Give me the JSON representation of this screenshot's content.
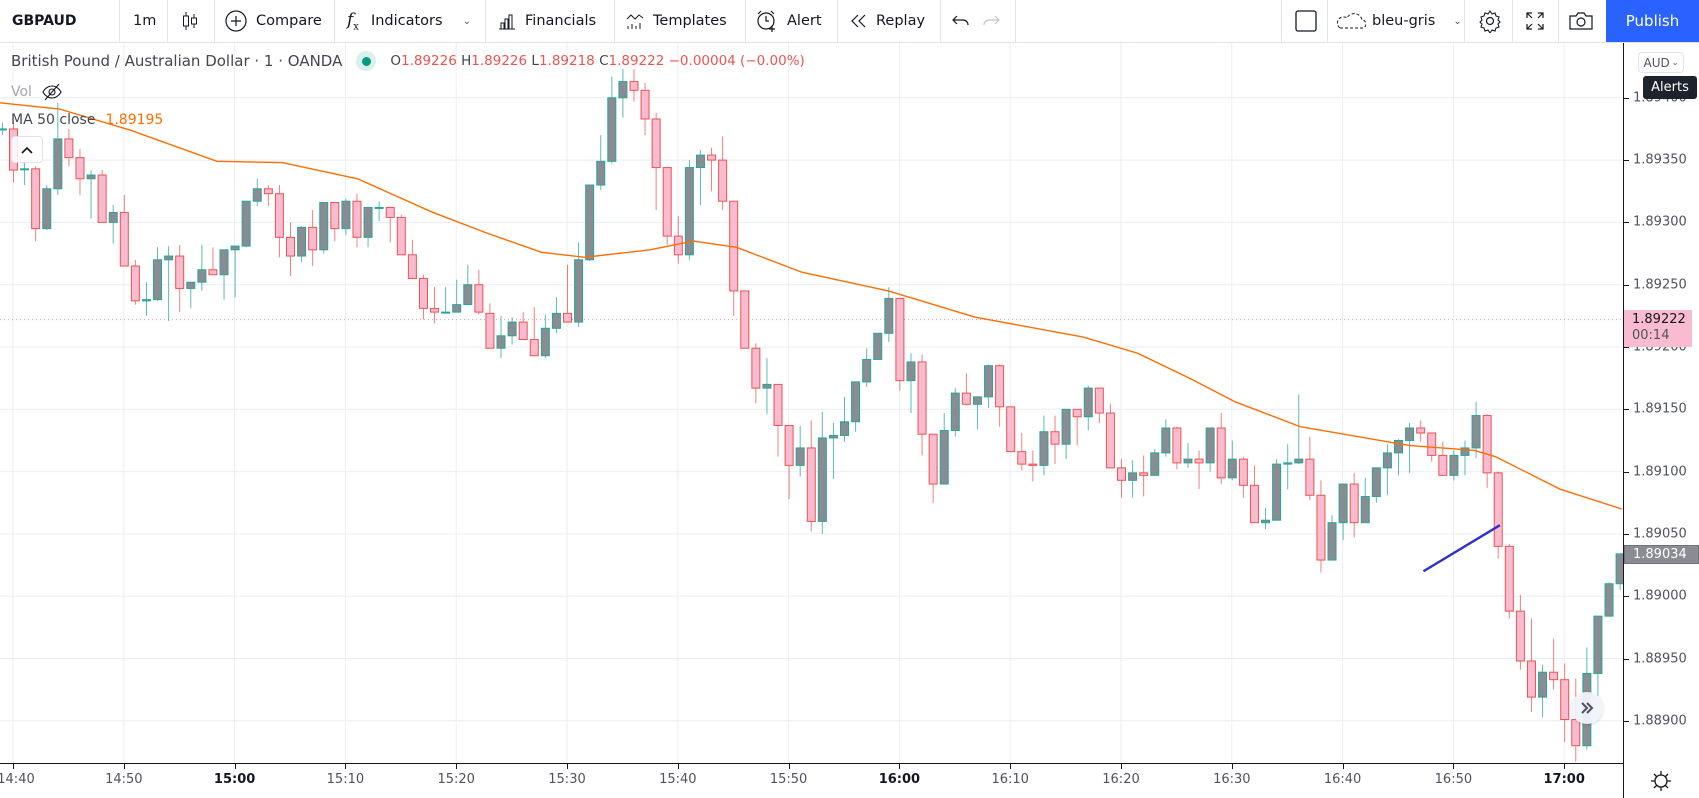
{
  "toolbar": {
    "symbol": "GBPAUD",
    "interval": "1m",
    "compare": "Compare",
    "indicators": "Indicators",
    "financials": "Financials",
    "templates": "Templates",
    "alert": "Alert",
    "replay": "Replay",
    "layout_name": "bleu-gris",
    "publish": "Publish"
  },
  "legend": {
    "title": "British Pound / Australian Dollar · 1 · OANDA",
    "open_k": "O",
    "open": "1.89226",
    "high_k": "H",
    "high": "1.89226",
    "low_k": "L",
    "low": "1.89218",
    "close_k": "C",
    "close": "1.89222",
    "change": "−0.00004 (−0.00%)",
    "vol": "Vol",
    "ma_label": "MA 50 close",
    "ma_value": "1.89195"
  },
  "price_axis": {
    "currency": "AUD",
    "tooltip": "Alerts",
    "last_price": "1.89222",
    "countdown": "00:14",
    "current_price": "1.89034",
    "labels": [
      "1.89400",
      "1.89350",
      "1.89300",
      "1.89250",
      "1.89200",
      "1.89150",
      "1.89100",
      "1.89050",
      "1.89000",
      "1.88950",
      "1.88900"
    ]
  },
  "time_axis": {
    "labels": [
      "14:40",
      "14:50",
      "15:00",
      "15:10",
      "15:20",
      "15:30",
      "15:40",
      "15:50",
      "16:00",
      "16:10",
      "16:20",
      "16:30",
      "16:40",
      "16:50",
      "17:00"
    ],
    "bold": [
      "15:00",
      "16:00",
      "17:00"
    ]
  },
  "colors": {
    "up_fill": "#8a8c93",
    "up_border": "#26a69a",
    "down_fill": "#f8bbd0",
    "down_border": "#ef5350",
    "ma": "#ff6d00",
    "trendline": "#3030c8",
    "accent": "#2962ff"
  },
  "chart_data": {
    "type": "candlestick",
    "symbol": "GBPAUD",
    "interval_minutes": 1,
    "first_bar_time": "14:39",
    "ylim": [
      1.8885,
      1.8944
    ],
    "ohlc": [
      [
        1.89375,
        1.8938,
        1.8937,
        1.89375
      ],
      [
        1.89375,
        1.8938,
        1.89332,
        1.89342
      ],
      [
        1.89343,
        1.8935,
        1.8933,
        1.89343
      ],
      [
        1.89343,
        1.89345,
        1.89285,
        1.89295
      ],
      [
        1.89295,
        1.8933,
        1.89294,
        1.89327
      ],
      [
        1.89327,
        1.89396,
        1.89322,
        1.89367
      ],
      [
        1.89367,
        1.89375,
        1.89345,
        1.89352
      ],
      [
        1.89352,
        1.89359,
        1.89322,
        1.89335
      ],
      [
        1.89335,
        1.89342,
        1.89303,
        1.89338
      ],
      [
        1.89338,
        1.89342,
        1.893,
        1.893
      ],
      [
        1.893,
        1.89314,
        1.89283,
        1.89308
      ],
      [
        1.89308,
        1.89322,
        1.89265,
        1.89265
      ],
      [
        1.89265,
        1.8927,
        1.89234,
        1.89237
      ],
      [
        1.89237,
        1.89252,
        1.89225,
        1.89238
      ],
      [
        1.89238,
        1.8928,
        1.89237,
        1.8927
      ],
      [
        1.8927,
        1.89281,
        1.89221,
        1.89273
      ],
      [
        1.89273,
        1.89282,
        1.89228,
        1.89247
      ],
      [
        1.89247,
        1.89252,
        1.89231,
        1.89252
      ],
      [
        1.89252,
        1.89282,
        1.89245,
        1.89262
      ],
      [
        1.89262,
        1.8928,
        1.89258,
        1.89258
      ],
      [
        1.89258,
        1.89278,
        1.89238,
        1.89278
      ],
      [
        1.89278,
        1.89281,
        1.8924,
        1.89281
      ],
      [
        1.89281,
        1.89317,
        1.8928,
        1.89317
      ],
      [
        1.89317,
        1.89335,
        1.89313,
        1.89327
      ],
      [
        1.89327,
        1.8933,
        1.89313,
        1.89323
      ],
      [
        1.89323,
        1.8933,
        1.89272,
        1.89288
      ],
      [
        1.89288,
        1.893,
        1.89257,
        1.89273
      ],
      [
        1.89273,
        1.89297,
        1.89268,
        1.89296
      ],
      [
        1.89296,
        1.8931,
        1.89265,
        1.89278
      ],
      [
        1.89278,
        1.89316,
        1.89275,
        1.89316
      ],
      [
        1.89316,
        1.89316,
        1.89285,
        1.89295
      ],
      [
        1.89295,
        1.89319,
        1.8929,
        1.89317
      ],
      [
        1.89317,
        1.89323,
        1.8928,
        1.89288
      ],
      [
        1.89288,
        1.89312,
        1.8928,
        1.89312
      ],
      [
        1.89312,
        1.89317,
        1.89301,
        1.89312
      ],
      [
        1.89312,
        1.89312,
        1.89284,
        1.89304
      ],
      [
        1.89304,
        1.89306,
        1.89274,
        1.89274
      ],
      [
        1.89274,
        1.89286,
        1.89255,
        1.89255
      ],
      [
        1.89255,
        1.89258,
        1.89222,
        1.89231
      ],
      [
        1.89231,
        1.89248,
        1.89219,
        1.89228
      ],
      [
        1.89228,
        1.89248,
        1.89228,
        1.89228
      ],
      [
        1.89228,
        1.89254,
        1.89228,
        1.89234
      ],
      [
        1.89234,
        1.89266,
        1.89234,
        1.8925
      ],
      [
        1.8925,
        1.89262,
        1.89226,
        1.89228
      ],
      [
        1.89227,
        1.89235,
        1.89199,
        1.89199
      ],
      [
        1.89199,
        1.89225,
        1.89191,
        1.89209
      ],
      [
        1.89209,
        1.89224,
        1.89202,
        1.8922
      ],
      [
        1.8922,
        1.89228,
        1.89206,
        1.89206
      ],
      [
        1.89206,
        1.89232,
        1.89193,
        1.89193
      ],
      [
        1.89193,
        1.89226,
        1.89191,
        1.89215
      ],
      [
        1.89215,
        1.8924,
        1.89211,
        1.89227
      ],
      [
        1.89227,
        1.89266,
        1.8922,
        1.8922
      ],
      [
        1.8922,
        1.89284,
        1.89216,
        1.8927
      ],
      [
        1.8927,
        1.8933,
        1.89269,
        1.8933
      ],
      [
        1.8933,
        1.8937,
        1.89326,
        1.89349
      ],
      [
        1.89349,
        1.89417,
        1.89347,
        1.894
      ],
      [
        1.894,
        1.89423,
        1.89384,
        1.89413
      ],
      [
        1.89413,
        1.89423,
        1.89397,
        1.89406
      ],
      [
        1.89406,
        1.89412,
        1.8937,
        1.89383
      ],
      [
        1.89383,
        1.89388,
        1.8931,
        1.89344
      ],
      [
        1.89344,
        1.89344,
        1.89282,
        1.89289
      ],
      [
        1.89289,
        1.89305,
        1.89267,
        1.89274
      ],
      [
        1.89274,
        1.8935,
        1.8927,
        1.89344
      ],
      [
        1.89344,
        1.89358,
        1.89314,
        1.89354
      ],
      [
        1.89354,
        1.8936,
        1.89325,
        1.8935
      ],
      [
        1.8935,
        1.89369,
        1.8931,
        1.89317
      ],
      [
        1.89317,
        1.89317,
        1.89225,
        1.89245
      ],
      [
        1.89245,
        1.89245,
        1.89199,
        1.89199
      ],
      [
        1.89199,
        1.89203,
        1.89155,
        1.89167
      ],
      [
        1.89167,
        1.89191,
        1.89146,
        1.8917
      ],
      [
        1.8917,
        1.8917,
        1.89112,
        1.89137
      ],
      [
        1.89137,
        1.89137,
        1.89078,
        1.89105
      ],
      [
        1.89105,
        1.89137,
        1.89096,
        1.89119
      ],
      [
        1.89119,
        1.89141,
        1.89052,
        1.8906
      ],
      [
        1.8906,
        1.89148,
        1.8905,
        1.89127
      ],
      [
        1.89127,
        1.89139,
        1.89094,
        1.89129
      ],
      [
        1.89129,
        1.8916,
        1.89124,
        1.8914
      ],
      [
        1.8914,
        1.89172,
        1.89132,
        1.89172
      ],
      [
        1.89172,
        1.89199,
        1.89168,
        1.8919
      ],
      [
        1.8919,
        1.89211,
        1.8919,
        1.89211
      ],
      [
        1.89211,
        1.89248,
        1.89204,
        1.89239
      ],
      [
        1.89239,
        1.89239,
        1.89165,
        1.89173
      ],
      [
        1.89173,
        1.89195,
        1.89147,
        1.89188
      ],
      [
        1.89188,
        1.89194,
        1.89113,
        1.8913
      ],
      [
        1.8913,
        1.8913,
        1.89075,
        1.8909
      ],
      [
        1.8909,
        1.89147,
        1.8909,
        1.89133
      ],
      [
        1.89133,
        1.89167,
        1.89128,
        1.89163
      ],
      [
        1.89163,
        1.89179,
        1.89153,
        1.89154
      ],
      [
        1.89154,
        1.8916,
        1.89134,
        1.8916
      ],
      [
        1.8916,
        1.89186,
        1.89151,
        1.89185
      ],
      [
        1.89185,
        1.89186,
        1.89136,
        1.89152
      ],
      [
        1.89152,
        1.89152,
        1.89116,
        1.89116
      ],
      [
        1.89116,
        1.89131,
        1.89101,
        1.89106
      ],
      [
        1.89106,
        1.89117,
        1.89092,
        1.89105
      ],
      [
        1.89105,
        1.89145,
        1.89097,
        1.89132
      ],
      [
        1.89132,
        1.89145,
        1.89106,
        1.89122
      ],
      [
        1.89122,
        1.8915,
        1.8911,
        1.8915
      ],
      [
        1.8915,
        1.8915,
        1.89121,
        1.89144
      ],
      [
        1.89144,
        1.89169,
        1.89133,
        1.89167
      ],
      [
        1.89167,
        1.89167,
        1.89139,
        1.89147
      ],
      [
        1.89147,
        1.89154,
        1.89103,
        1.89103
      ],
      [
        1.89103,
        1.8911,
        1.89079,
        1.89093
      ],
      [
        1.89093,
        1.89109,
        1.89079,
        1.89099
      ],
      [
        1.89099,
        1.89113,
        1.8908,
        1.89097
      ],
      [
        1.89097,
        1.89118,
        1.89097,
        1.89115
      ],
      [
        1.89115,
        1.89142,
        1.89112,
        1.89135
      ],
      [
        1.89135,
        1.89136,
        1.89102,
        1.89107
      ],
      [
        1.89107,
        1.89123,
        1.89103,
        1.8911
      ],
      [
        1.8911,
        1.89117,
        1.89086,
        1.89107
      ],
      [
        1.89107,
        1.89135,
        1.891,
        1.89135
      ],
      [
        1.89135,
        1.89147,
        1.8909,
        1.89095
      ],
      [
        1.89095,
        1.89125,
        1.89093,
        1.8911
      ],
      [
        1.8911,
        1.89112,
        1.89079,
        1.89089
      ],
      [
        1.89089,
        1.89105,
        1.89059,
        1.89059
      ],
      [
        1.89059,
        1.89071,
        1.89054,
        1.89061
      ],
      [
        1.89061,
        1.8911,
        1.89061,
        1.89106
      ],
      [
        1.89106,
        1.89122,
        1.89086,
        1.89107
      ],
      [
        1.89107,
        1.89162,
        1.89106,
        1.8911
      ],
      [
        1.8911,
        1.89128,
        1.89077,
        1.89081
      ],
      [
        1.89081,
        1.89093,
        1.89019,
        1.89029
      ],
      [
        1.89029,
        1.89065,
        1.89029,
        1.89059
      ],
      [
        1.89059,
        1.8909,
        1.89045,
        1.8909
      ],
      [
        1.8909,
        1.89099,
        1.89047,
        1.89059
      ],
      [
        1.89059,
        1.89095,
        1.89059,
        1.8908
      ],
      [
        1.8908,
        1.89103,
        1.89075,
        1.89103
      ],
      [
        1.89103,
        1.89122,
        1.89081,
        1.89115
      ],
      [
        1.89115,
        1.89126,
        1.89097,
        1.89125
      ],
      [
        1.89125,
        1.89139,
        1.89099,
        1.89135
      ],
      [
        1.89135,
        1.89141,
        1.89124,
        1.89131
      ],
      [
        1.89131,
        1.89131,
        1.89108,
        1.89113
      ],
      [
        1.89113,
        1.89124,
        1.89097,
        1.89097
      ],
      [
        1.89097,
        1.89117,
        1.89093,
        1.89113
      ],
      [
        1.89113,
        1.89125,
        1.89097,
        1.89119
      ],
      [
        1.89119,
        1.89156,
        1.89111,
        1.89145
      ],
      [
        1.89145,
        1.89146,
        1.89087,
        1.89099
      ],
      [
        1.89099,
        1.891,
        1.8903,
        1.8904
      ],
      [
        1.8904,
        1.89042,
        1.88982,
        1.88988
      ],
      [
        1.88988,
        1.89001,
        1.88941,
        1.88948
      ],
      [
        1.88948,
        1.88982,
        1.88907,
        1.88919
      ],
      [
        1.88919,
        1.88945,
        1.88903,
        1.88939
      ],
      [
        1.88939,
        1.88966,
        1.88925,
        1.88933
      ],
      [
        1.88933,
        1.88946,
        1.88883,
        1.88901
      ],
      [
        1.88901,
        1.88934,
        1.88867,
        1.8888
      ],
      [
        1.8888,
        1.88959,
        1.88877,
        1.88938
      ],
      [
        1.88938,
        1.88984,
        1.8892,
        1.88984
      ],
      [
        1.88984,
        1.89011,
        1.88984,
        1.8901
      ],
      [
        1.8901,
        1.89034,
        1.89005,
        1.89034
      ]
    ],
    "ma50": [
      [
        -1.2,
        1.89396
      ],
      [
        4.2,
        1.89391
      ],
      [
        10.6,
        1.89374
      ],
      [
        18.4,
        1.89349
      ],
      [
        24.3,
        1.89348
      ],
      [
        31.1,
        1.89335
      ],
      [
        37.9,
        1.89308
      ],
      [
        42.9,
        1.89291
      ],
      [
        47.7,
        1.89276
      ],
      [
        51.6,
        1.89272
      ],
      [
        57.5,
        1.89278
      ],
      [
        61.4,
        1.89285
      ],
      [
        65.3,
        1.8928
      ],
      [
        71.2,
        1.8926
      ],
      [
        79,
        1.89245
      ],
      [
        86.8,
        1.89224
      ],
      [
        96.6,
        1.89208
      ],
      [
        101.5,
        1.89195
      ],
      [
        106.4,
        1.89174
      ],
      [
        110.3,
        1.89156
      ],
      [
        116.2,
        1.89136
      ],
      [
        126,
        1.89121
      ],
      [
        131.9,
        1.89117
      ],
      [
        133.8,
        1.89112
      ],
      [
        139.6,
        1.89086
      ],
      [
        145.2,
        1.8907
      ]
    ],
    "trendline": [
      [
        127.3,
        1.8902
      ],
      [
        134.2,
        1.89057
      ]
    ],
    "last_price_line": 1.89222
  }
}
